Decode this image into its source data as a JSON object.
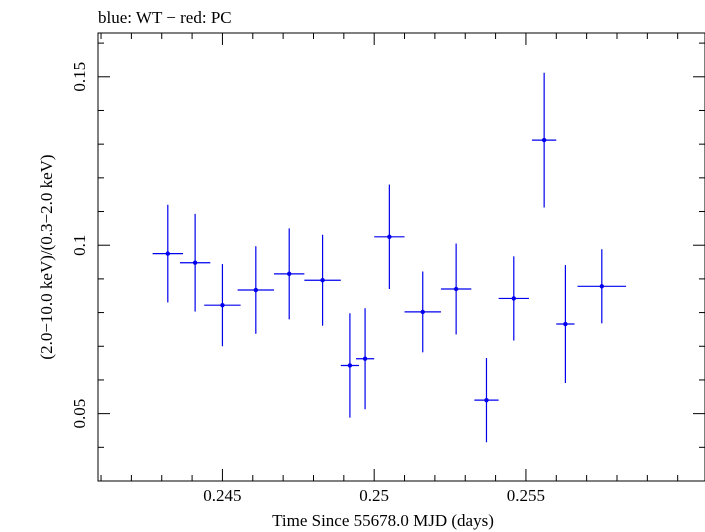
{
  "chart_data": {
    "type": "scatter",
    "title": "blue: WT − red: PC",
    "xlabel": "Time Since 55678.0 MJD (days)",
    "ylabel": "(2.0−10.0 keV)/(0.3−2.0 keV)",
    "xlim": [
      0.2409,
      0.2609
    ],
    "ylim": [
      0.03,
      0.163
    ],
    "x_ticks": [
      0.245,
      0.25,
      0.255
    ],
    "x_tick_labels": [
      "0.245",
      "0.25",
      "0.255"
    ],
    "y_ticks": [
      0.05,
      0.1,
      0.15
    ],
    "y_tick_labels": [
      "0.05",
      "0.1",
      "0.15"
    ],
    "grid": false,
    "series": [
      {
        "color": "#0000ee",
        "points": [
          {
            "x": 0.2432,
            "xerr": 0.0005,
            "y": 0.0975,
            "yerr": 0.0145
          },
          {
            "x": 0.2441,
            "xerr": 0.0005,
            "y": 0.0948,
            "yerr": 0.0145
          },
          {
            "x": 0.245,
            "xerr": 0.0006,
            "y": 0.0822,
            "yerr": 0.0122
          },
          {
            "x": 0.2461,
            "xerr": 0.0006,
            "y": 0.0867,
            "yerr": 0.013
          },
          {
            "x": 0.2472,
            "xerr": 0.0005,
            "y": 0.0915,
            "yerr": 0.0135
          },
          {
            "x": 0.2483,
            "xerr": 0.0006,
            "y": 0.0896,
            "yerr": 0.0135
          },
          {
            "x": 0.2492,
            "xerr": 0.0003,
            "y": 0.0643,
            "yerr": 0.0155
          },
          {
            "x": 0.2497,
            "xerr": 0.0003,
            "y": 0.0663,
            "yerr": 0.015
          },
          {
            "x": 0.2505,
            "xerr": 0.0005,
            "y": 0.1025,
            "yerr": 0.0155
          },
          {
            "x": 0.2516,
            "xerr": 0.0006,
            "y": 0.0802,
            "yerr": 0.012
          },
          {
            "x": 0.2527,
            "xerr": 0.0005,
            "y": 0.087,
            "yerr": 0.0135
          },
          {
            "x": 0.2537,
            "xerr": 0.0004,
            "y": 0.054,
            "yerr": 0.0125
          },
          {
            "x": 0.2546,
            "xerr": 0.0005,
            "y": 0.0842,
            "yerr": 0.0125
          },
          {
            "x": 0.2556,
            "xerr": 0.0004,
            "y": 0.1312,
            "yerr": 0.02
          },
          {
            "x": 0.2563,
            "xerr": 0.0003,
            "y": 0.0766,
            "yerr": 0.0175
          },
          {
            "x": 0.2575,
            "xerr": 0.0008,
            "y": 0.0878,
            "yerr": 0.011
          }
        ]
      }
    ]
  }
}
